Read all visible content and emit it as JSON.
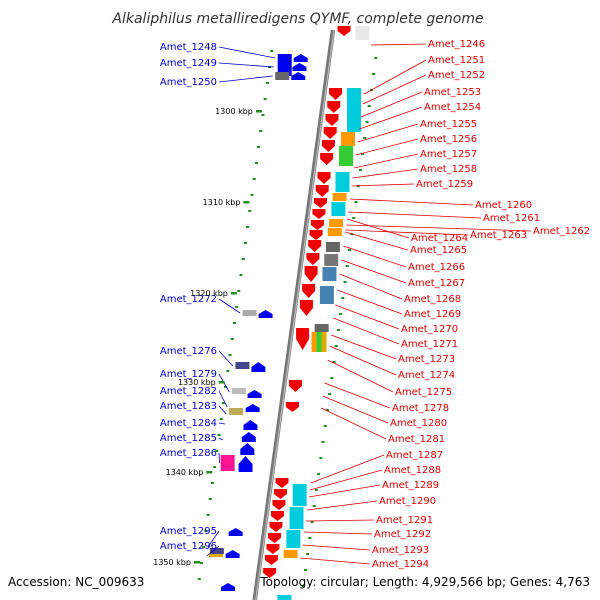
{
  "title": "Alkaliphilus metalliredigens QYMF, complete genome",
  "accession": "Accession: NC_009633",
  "summary": "Topology: circular; Length: 4,929,566 bp; Genes: 4,763",
  "colors": {
    "forward_label": "#0000cc",
    "reverse_label": "#dd0000",
    "forward_arrow": "#0000ee",
    "reverse_arrow": "#ee0000",
    "backbone": "#888888",
    "tick": "#228b22"
  },
  "scale_ticks": [
    "1300 kbp",
    "1310 kbp",
    "1320 kbp",
    "1330 kbp",
    "1340 kbp",
    "1350 kbp"
  ],
  "forward_genes": [
    "Amet_1248",
    "Amet_1249",
    "Amet_1250",
    "Amet_1272",
    "Amet_1276",
    "Amet_1279",
    "Amet_1282",
    "Amet_1283",
    "Amet_1284",
    "Amet_1285",
    "Amet_1286",
    "Amet_1295",
    "Amet_1296"
  ],
  "reverse_genes": [
    "Amet_1246",
    "Amet_1251",
    "Amet_1252",
    "Amet_1253",
    "Amet_1254",
    "Amet_1255",
    "Amet_1256",
    "Amet_1257",
    "Amet_1258",
    "Amet_1259",
    "Amet_1260",
    "Amet_1261",
    "Amet_1262",
    "Amet_1263",
    "Amet_1264",
    "Amet_1265",
    "Amet_1266",
    "Amet_1267",
    "Amet_1268",
    "Amet_1269",
    "Amet_1270",
    "Amet_1271",
    "Amet_1273",
    "Amet_1274",
    "Amet_1275",
    "Amet_1278",
    "Amet_1280",
    "Amet_1281",
    "Amet_1287",
    "Amet_1288",
    "Amet_1289",
    "Amet_1290",
    "Amet_1291",
    "Amet_1292",
    "Amet_1293",
    "Amet_1294"
  ]
}
